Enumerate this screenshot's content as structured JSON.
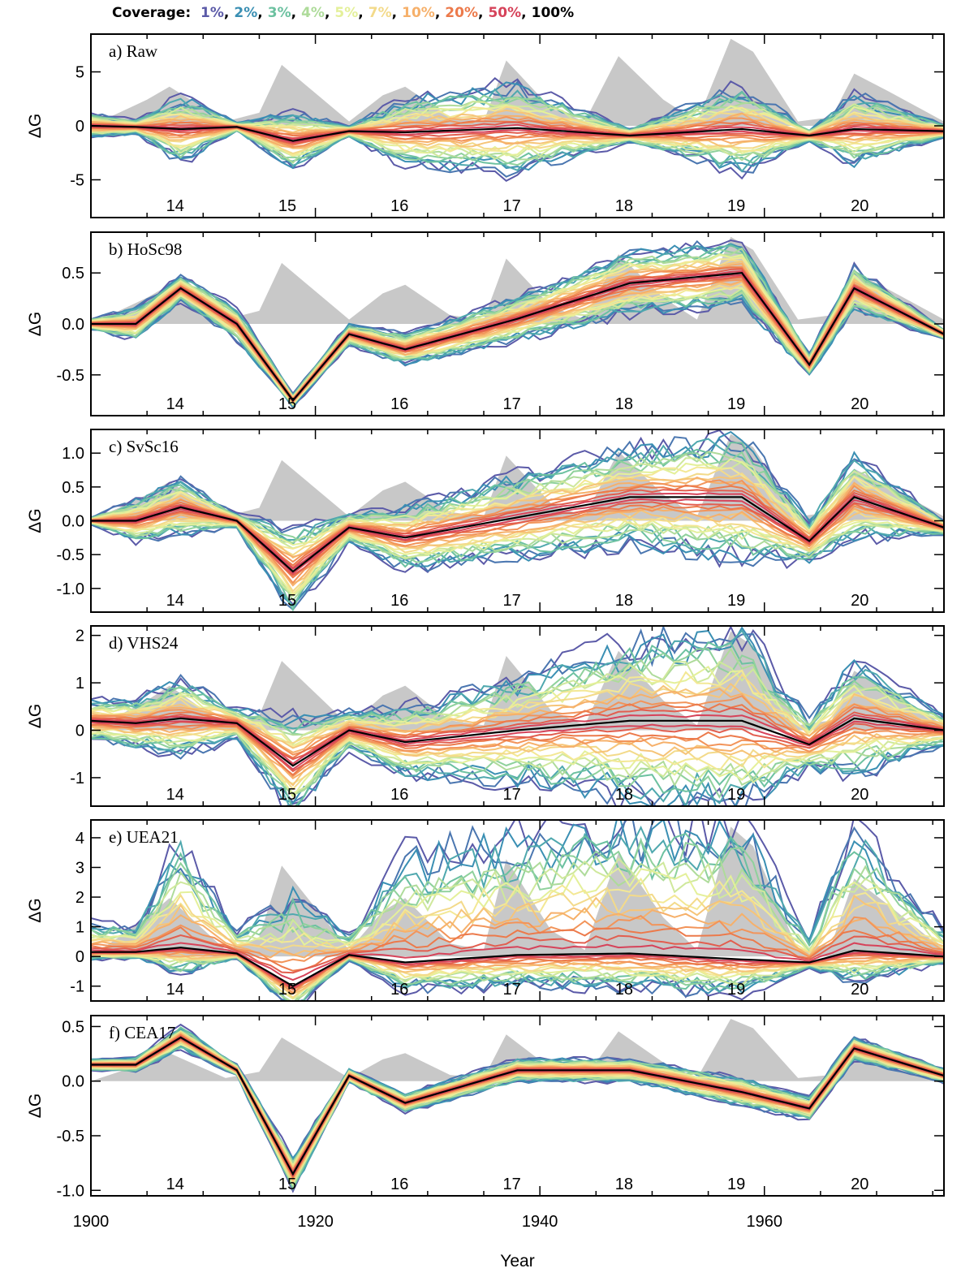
{
  "legend": {
    "title": "Coverage:",
    "items": [
      {
        "label": "1%",
        "color": "#5b5aa8",
        "sep": ","
      },
      {
        "label": "2%",
        "color": "#3a8fb3",
        "sep": ","
      },
      {
        "label": "3%",
        "color": "#6cc1a0",
        "sep": ","
      },
      {
        "label": "4%",
        "color": "#aedb9a",
        "sep": ","
      },
      {
        "label": "5%",
        "color": "#e4f09a",
        "sep": ","
      },
      {
        "label": "7%",
        "color": "#f3da8a",
        "sep": ","
      },
      {
        "label": "10%",
        "color": "#f6b06a",
        "sep": ","
      },
      {
        "label": "20%",
        "color": "#ec7a4b",
        "sep": ","
      },
      {
        "label": "50%",
        "color": "#d6435a",
        "sep": ","
      },
      {
        "label": "100%",
        "color": "#000000",
        "sep": ""
      }
    ]
  },
  "xlabel": "Year",
  "x_ticks": [
    "1900",
    "1920",
    "1940",
    "1960"
  ],
  "cycle_labels": [
    "14",
    "15",
    "16",
    "17",
    "18",
    "19",
    "20"
  ],
  "chart_data": [
    {
      "type": "line",
      "title": "a) Raw",
      "ylabel": "ΔG",
      "xlim": [
        1900,
        1976
      ],
      "ylim": [
        -8.5,
        8.5
      ],
      "y_ticks": [
        "5",
        "0",
        "-5"
      ],
      "y_tick_values": [
        5,
        0,
        -5
      ],
      "spread_profile": [
        1.1,
        0.6,
        3.0,
        0.4,
        2.5,
        0.5,
        3.0,
        4.0,
        0.6,
        4.0,
        0.5,
        3.2,
        0.6
      ],
      "mean": [
        0.0,
        -0.1,
        -0.3,
        -0.1,
        -1.4,
        -0.5,
        -0.6,
        -0.2,
        -0.9,
        -0.3,
        -0.9,
        -0.3,
        -0.5
      ]
    },
    {
      "type": "line",
      "title": "b) HoSc98",
      "ylabel": "ΔG",
      "xlim": [
        1900,
        1976
      ],
      "ylim": [
        -0.9,
        0.9
      ],
      "y_ticks": [
        "0.5",
        "0.0",
        "-0.5"
      ],
      "y_tick_values": [
        0.5,
        0.0,
        -0.5
      ],
      "spread_profile": [
        0.05,
        0.15,
        0.12,
        0.15,
        0.06,
        0.1,
        0.15,
        0.2,
        0.3,
        0.3,
        0.1,
        0.2,
        0.05
      ],
      "mean": [
        0.0,
        0.0,
        0.35,
        0.0,
        -0.75,
        -0.1,
        -0.25,
        0.05,
        0.4,
        0.5,
        -0.4,
        0.35,
        -0.1
      ]
    },
    {
      "type": "line",
      "title": "c) SvSc16",
      "ylabel": "ΔG",
      "xlim": [
        1900,
        1976
      ],
      "ylim": [
        -1.35,
        1.35
      ],
      "y_ticks": [
        "1.0",
        "0.5",
        "0.0",
        "-0.5",
        "-1.0"
      ],
      "y_tick_values": [
        1.0,
        0.5,
        0.0,
        -0.5,
        -1.0
      ],
      "spread_profile": [
        0.05,
        0.3,
        0.4,
        0.1,
        0.6,
        0.2,
        0.45,
        0.6,
        0.7,
        0.9,
        0.3,
        0.6,
        0.1
      ],
      "mean": [
        0.0,
        0.0,
        0.2,
        0.0,
        -0.75,
        -0.1,
        -0.25,
        0.05,
        0.35,
        0.35,
        -0.3,
        0.35,
        -0.1
      ]
    },
    {
      "type": "line",
      "title": "d) VHS24",
      "ylabel": "ΔG",
      "xlim": [
        1900,
        1976
      ],
      "ylim": [
        -1.6,
        2.2
      ],
      "y_ticks": [
        "2",
        "1",
        "0",
        "-1"
      ],
      "y_tick_values": [
        2,
        1,
        0,
        -1
      ],
      "spread_profile": [
        0.4,
        0.5,
        0.8,
        0.3,
        1.0,
        0.4,
        0.7,
        1.1,
        1.6,
        1.9,
        0.5,
        1.2,
        0.3
      ],
      "mean": [
        0.2,
        0.15,
        0.25,
        0.15,
        -0.75,
        0.0,
        -0.25,
        0.0,
        0.2,
        0.2,
        -0.3,
        0.25,
        0.0
      ]
    },
    {
      "type": "line",
      "title": "e) UEA21",
      "ylabel": "ΔG",
      "xlim": [
        1900,
        1976
      ],
      "ylim": [
        -1.5,
        4.6
      ],
      "y_ticks": [
        "4",
        "3",
        "2",
        "1",
        "0",
        "-1"
      ],
      "y_tick_values": [
        4,
        3,
        2,
        1,
        0,
        -1
      ],
      "spread_profile": [
        1.0,
        0.8,
        3.5,
        0.7,
        3.2,
        0.7,
        3.5,
        4.0,
        4.4,
        4.5,
        0.7,
        4.2,
        0.8
      ],
      "mean": [
        0.15,
        0.15,
        0.3,
        0.1,
        -1.0,
        0.05,
        -0.2,
        0.05,
        0.1,
        -0.1,
        -0.2,
        0.2,
        0.0
      ]
    },
    {
      "type": "line",
      "title": "f) CEA17",
      "ylabel": "ΔG",
      "xlim": [
        1900,
        1976
      ],
      "ylim": [
        -1.05,
        0.6
      ],
      "y_ticks": [
        "0.5",
        "0.0",
        "-0.5",
        "-1.0"
      ],
      "y_tick_values": [
        0.5,
        0.0,
        -0.5,
        -1.0
      ],
      "spread_profile": [
        0.05,
        0.06,
        0.1,
        0.05,
        0.15,
        0.06,
        0.08,
        0.1,
        0.1,
        0.12,
        0.1,
        0.1,
        0.06
      ],
      "mean": [
        0.15,
        0.15,
        0.4,
        0.1,
        -0.85,
        0.05,
        -0.2,
        0.1,
        0.1,
        -0.1,
        -0.25,
        0.3,
        0.05
      ]
    }
  ],
  "sunspot_envelope": {
    "years": [
      1900,
      1905,
      1907,
      1912,
      1915,
      1917,
      1923,
      1926,
      1928,
      1932,
      1935,
      1937,
      1941,
      1944,
      1947,
      1951,
      1954,
      1957,
      1959,
      1963,
      1966,
      1968,
      1971,
      1976
    ],
    "relative_height": [
      0.0,
      0.3,
      0.45,
      0.05,
      0.15,
      0.7,
      0.05,
      0.35,
      0.45,
      0.1,
      0.05,
      0.75,
      0.2,
      0.05,
      0.8,
      0.3,
      0.05,
      1.0,
      0.85,
      0.05,
      0.1,
      0.6,
      0.4,
      0.05
    ]
  }
}
